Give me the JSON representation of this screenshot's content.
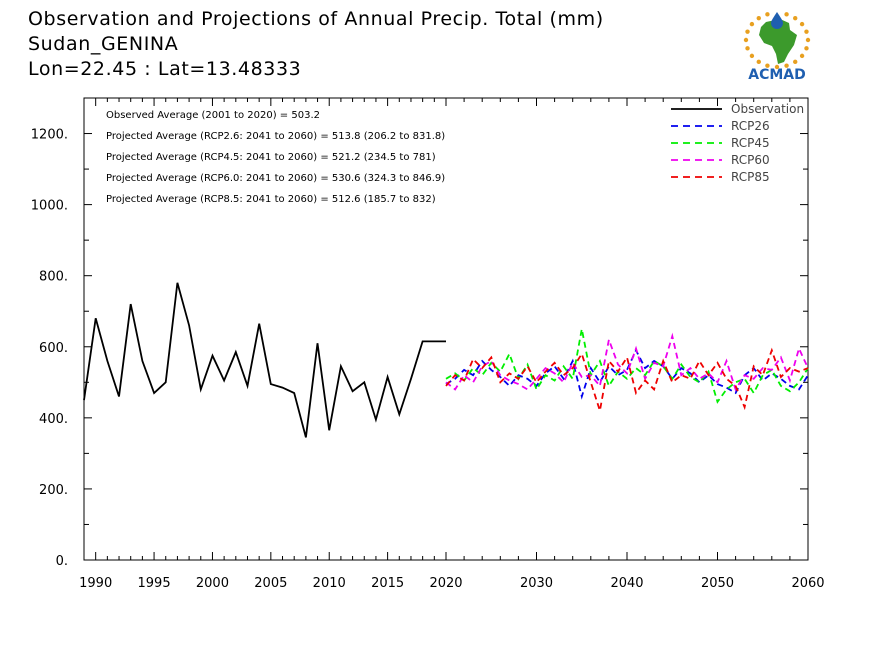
{
  "header": {
    "title": "Observation and Projections of Annual Precip. Total (mm)",
    "station": "Sudan_GENINA",
    "coords": "Lon=22.45 : Lat=13.48333"
  },
  "logo": {
    "text": "ACMAD",
    "primary_color": "#1f5fb0",
    "accent_color": "#e8a020",
    "land_color": "#3c9a2c"
  },
  "colors": {
    "Observation": "#000000",
    "RCP26": "#0000ee",
    "RCP45": "#00ee00",
    "RCP60": "#ee00ee",
    "RCP85": "#ee0000"
  },
  "stats": [
    "Observed Average (2001 to 2020) = 503.2",
    "Projected Average (RCP2.6: 2041 to 2060) = 513.8 (206.2 to 831.8)",
    "Projected Average (RCP4.5: 2041 to 2060) = 521.2 (234.5 to 781)",
    "Projected Average (RCP6.0: 2041 to 2060) = 530.6 (324.3 to 846.9)",
    "Projected Average (RCP8.5: 2041 to 2060) = 512.6 (185.7 to 832)"
  ],
  "chart_data": {
    "type": "line",
    "title": "Observation and Projections of Annual Precip. Total (mm)",
    "xlabel": "",
    "ylabel": "",
    "xlim": [
      1989,
      2060
    ],
    "ylim": [
      0,
      1300
    ],
    "grid": false,
    "legend_position": "top-right",
    "x_tick_labels": [
      "1990",
      "1995",
      "2000",
      "2005",
      "2010",
      "2015",
      "2020",
      "2030",
      "2040",
      "2050",
      "2060"
    ],
    "x_tick_values": [
      1990,
      1995,
      2000,
      2005,
      2010,
      2015,
      2020,
      2030,
      2040,
      2050,
      2060
    ],
    "y_tick_labels": [
      "0.",
      "200.",
      "400.",
      "600.",
      "800.",
      "1000.",
      "1200."
    ],
    "y_tick_values": [
      0,
      200,
      400,
      600,
      800,
      1000,
      1200
    ],
    "series": [
      {
        "name": "Observation",
        "style": "solid",
        "x": [
          1989,
          1990,
          1991,
          1992,
          1993,
          1994,
          1995,
          1996,
          1997,
          1998,
          1999,
          2000,
          2001,
          2002,
          2003,
          2004,
          2005,
          2006,
          2007,
          2008,
          2009,
          2010,
          2011,
          2012,
          2013,
          2014,
          2015,
          2016,
          2017,
          2018,
          2019,
          2020
        ],
        "values": [
          450,
          680,
          560,
          460,
          720,
          560,
          470,
          500,
          780,
          660,
          480,
          575,
          505,
          585,
          490,
          665,
          495,
          485,
          470,
          345,
          610,
          365,
          545,
          475,
          500,
          395,
          515,
          410,
          510,
          615,
          615,
          615
        ]
      },
      {
        "name": "RCP26",
        "style": "dashed",
        "x": [
          2020,
          2021,
          2022,
          2023,
          2024,
          2025,
          2026,
          2027,
          2028,
          2029,
          2030,
          2031,
          2032,
          2033,
          2034,
          2035,
          2036,
          2037,
          2038,
          2039,
          2040,
          2041,
          2042,
          2043,
          2044,
          2045,
          2046,
          2047,
          2048,
          2049,
          2050,
          2051,
          2052,
          2053,
          2054,
          2055,
          2056,
          2057,
          2058,
          2059,
          2060
        ],
        "values": [
          495,
          510,
          535,
          520,
          560,
          535,
          515,
          490,
          520,
          510,
          490,
          525,
          545,
          510,
          560,
          460,
          540,
          500,
          545,
          520,
          535,
          590,
          540,
          560,
          545,
          510,
          540,
          525,
          500,
          520,
          495,
          485,
          470,
          520,
          540,
          505,
          525,
          510,
          490,
          480,
          520
        ]
      },
      {
        "name": "RCP45",
        "style": "dashed",
        "x": [
          2020,
          2021,
          2022,
          2023,
          2024,
          2025,
          2026,
          2027,
          2028,
          2029,
          2030,
          2031,
          2032,
          2033,
          2034,
          2035,
          2036,
          2037,
          2038,
          2039,
          2040,
          2041,
          2042,
          2043,
          2044,
          2045,
          2046,
          2047,
          2048,
          2049,
          2050,
          2051,
          2052,
          2053,
          2054,
          2055,
          2056,
          2057,
          2058,
          2059,
          2060
        ],
        "values": [
          510,
          525,
          505,
          540,
          520,
          555,
          530,
          580,
          510,
          550,
          480,
          520,
          505,
          545,
          510,
          650,
          520,
          560,
          490,
          530,
          510,
          540,
          520,
          560,
          545,
          510,
          550,
          515,
          500,
          530,
          445,
          480,
          500,
          510,
          470,
          520,
          535,
          490,
          475,
          500,
          540
        ]
      },
      {
        "name": "RCP60",
        "style": "dashed",
        "x": [
          2020,
          2021,
          2022,
          2023,
          2024,
          2025,
          2026,
          2027,
          2028,
          2029,
          2030,
          2031,
          2032,
          2033,
          2034,
          2035,
          2036,
          2037,
          2038,
          2039,
          2040,
          2041,
          2042,
          2043,
          2044,
          2045,
          2046,
          2047,
          2048,
          2049,
          2050,
          2051,
          2052,
          2053,
          2054,
          2055,
          2056,
          2057,
          2058,
          2059,
          2060
        ],
        "values": [
          500,
          480,
          520,
          500,
          545,
          560,
          520,
          505,
          495,
          480,
          510,
          540,
          525,
          500,
          555,
          515,
          520,
          490,
          620,
          550,
          525,
          595,
          510,
          555,
          545,
          630,
          520,
          540,
          510,
          525,
          500,
          560,
          480,
          520,
          510,
          540,
          535,
          570,
          505,
          595,
          540
        ]
      },
      {
        "name": "RCP85",
        "style": "dashed",
        "x": [
          2020,
          2021,
          2022,
          2023,
          2024,
          2025,
          2026,
          2027,
          2028,
          2029,
          2030,
          2031,
          2032,
          2033,
          2034,
          2035,
          2036,
          2037,
          2038,
          2039,
          2040,
          2041,
          2042,
          2043,
          2044,
          2045,
          2046,
          2047,
          2048,
          2049,
          2050,
          2051,
          2052,
          2053,
          2054,
          2055,
          2056,
          2057,
          2058,
          2059,
          2060
        ],
        "values": [
          490,
          520,
          505,
          565,
          540,
          570,
          500,
          525,
          510,
          545,
          500,
          530,
          555,
          520,
          540,
          580,
          500,
          420,
          560,
          530,
          570,
          470,
          505,
          480,
          560,
          500,
          520,
          510,
          560,
          520,
          555,
          510,
          490,
          430,
          545,
          520,
          590,
          515,
          540,
          530,
          540
        ]
      }
    ]
  }
}
